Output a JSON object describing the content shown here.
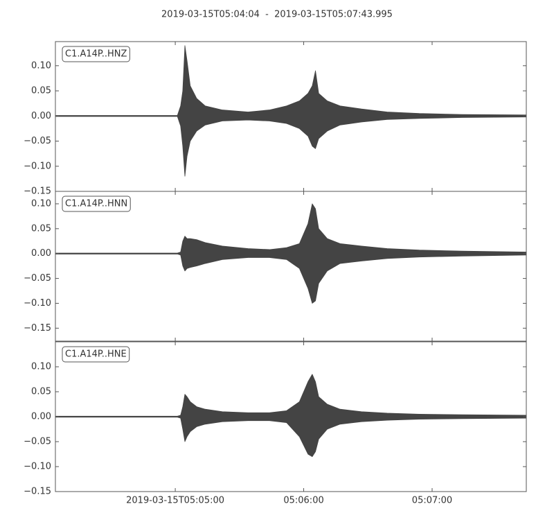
{
  "title": "2019-03-15T05:04:04  -  2019-03-15T05:07:43.995",
  "chart_data": [
    {
      "type": "area",
      "label": "C1.A14P..HNZ",
      "color": "#444444",
      "x": [
        0,
        57,
        58.5,
        59.5,
        60.5,
        61.5,
        63,
        66,
        70,
        78,
        90,
        100,
        108,
        114,
        118,
        120,
        121.5,
        123,
        127,
        133,
        143,
        155,
        170,
        190,
        220
      ],
      "upper": [
        0.001,
        0.001,
        0.02,
        0.05,
        0.14,
        0.11,
        0.06,
        0.035,
        0.02,
        0.012,
        0.008,
        0.012,
        0.02,
        0.03,
        0.045,
        0.06,
        0.09,
        0.045,
        0.03,
        0.02,
        0.014,
        0.008,
        0.005,
        0.003,
        0.002
      ],
      "lower": [
        -0.001,
        -0.001,
        -0.02,
        -0.06,
        -0.12,
        -0.08,
        -0.05,
        -0.03,
        -0.018,
        -0.01,
        -0.008,
        -0.01,
        -0.015,
        -0.025,
        -0.04,
        -0.06,
        -0.065,
        -0.045,
        -0.03,
        -0.018,
        -0.012,
        -0.007,
        -0.005,
        -0.003,
        -0.002
      ],
      "xlim": [
        0,
        220
      ],
      "ylim": [
        -0.15,
        0.148
      ],
      "yticks": [
        {
          "value": 0.1,
          "label": "0.10"
        },
        {
          "value": 0.05,
          "label": "0.05"
        },
        {
          "value": 0,
          "label": "0.00"
        },
        {
          "value": -0.05,
          "label": "−0.05"
        },
        {
          "value": -0.1,
          "label": "−0.10"
        },
        {
          "value": -0.15,
          "label": "−0.15"
        }
      ]
    },
    {
      "type": "area",
      "label": "C1.A14P..HNN",
      "color": "#444444",
      "x": [
        0,
        57,
        58.5,
        59.5,
        60.5,
        61.5,
        63,
        66,
        70,
        78,
        90,
        100,
        108,
        114,
        118,
        120,
        121.5,
        123,
        127,
        133,
        143,
        155,
        170,
        190,
        220
      ],
      "upper": [
        0.001,
        0.001,
        0.003,
        0.025,
        0.035,
        0.03,
        0.03,
        0.028,
        0.022,
        0.015,
        0.01,
        0.008,
        0.012,
        0.02,
        0.06,
        0.1,
        0.09,
        0.05,
        0.03,
        0.02,
        0.015,
        0.01,
        0.007,
        0.005,
        0.003
      ],
      "lower": [
        -0.001,
        -0.001,
        -0.003,
        -0.025,
        -0.035,
        -0.03,
        -0.028,
        -0.025,
        -0.02,
        -0.012,
        -0.008,
        -0.008,
        -0.012,
        -0.03,
        -0.07,
        -0.1,
        -0.095,
        -0.06,
        -0.035,
        -0.02,
        -0.015,
        -0.01,
        -0.007,
        -0.005,
        -0.003
      ],
      "xlim": [
        0,
        220
      ],
      "ylim": [
        -0.176,
        0.125
      ],
      "yticks": [
        {
          "value": 0.1,
          "label": "0.10"
        },
        {
          "value": 0.05,
          "label": "0.05"
        },
        {
          "value": 0,
          "label": "0.00"
        },
        {
          "value": -0.05,
          "label": "−0.05"
        },
        {
          "value": -0.1,
          "label": "−0.10"
        },
        {
          "value": -0.15,
          "label": "−0.15"
        }
      ]
    },
    {
      "type": "area",
      "label": "C1.A14P..HNE",
      "color": "#444444",
      "x": [
        0,
        57,
        58.5,
        59.5,
        60.5,
        61.5,
        63,
        66,
        70,
        78,
        90,
        100,
        108,
        114,
        118,
        120,
        121.5,
        123,
        127,
        133,
        143,
        155,
        170,
        190,
        220
      ],
      "upper": [
        0.001,
        0.001,
        0.003,
        0.02,
        0.045,
        0.04,
        0.03,
        0.02,
        0.015,
        0.01,
        0.008,
        0.008,
        0.012,
        0.03,
        0.07,
        0.085,
        0.07,
        0.04,
        0.025,
        0.015,
        0.01,
        0.007,
        0.005,
        0.004,
        0.003
      ],
      "lower": [
        -0.001,
        -0.001,
        -0.003,
        -0.025,
        -0.05,
        -0.04,
        -0.03,
        -0.02,
        -0.015,
        -0.01,
        -0.008,
        -0.008,
        -0.012,
        -0.04,
        -0.075,
        -0.08,
        -0.07,
        -0.045,
        -0.025,
        -0.015,
        -0.01,
        -0.007,
        -0.005,
        -0.004,
        -0.003
      ],
      "xlim": [
        0,
        220
      ],
      "ylim": [
        -0.15,
        0.15
      ],
      "yticks": [
        {
          "value": 0.1,
          "label": "0.10"
        },
        {
          "value": 0.05,
          "label": "0.05"
        },
        {
          "value": 0,
          "label": "0.00"
        },
        {
          "value": -0.05,
          "label": "−0.05"
        },
        {
          "value": -0.1,
          "label": "−0.10"
        },
        {
          "value": -0.15,
          "label": "−0.15"
        }
      ],
      "xticks": [
        {
          "value": 56,
          "label": "2019-03-15T05:05:00"
        },
        {
          "value": 116,
          "label": "05:06:00"
        },
        {
          "value": 176,
          "label": "05:07:00"
        }
      ]
    }
  ]
}
